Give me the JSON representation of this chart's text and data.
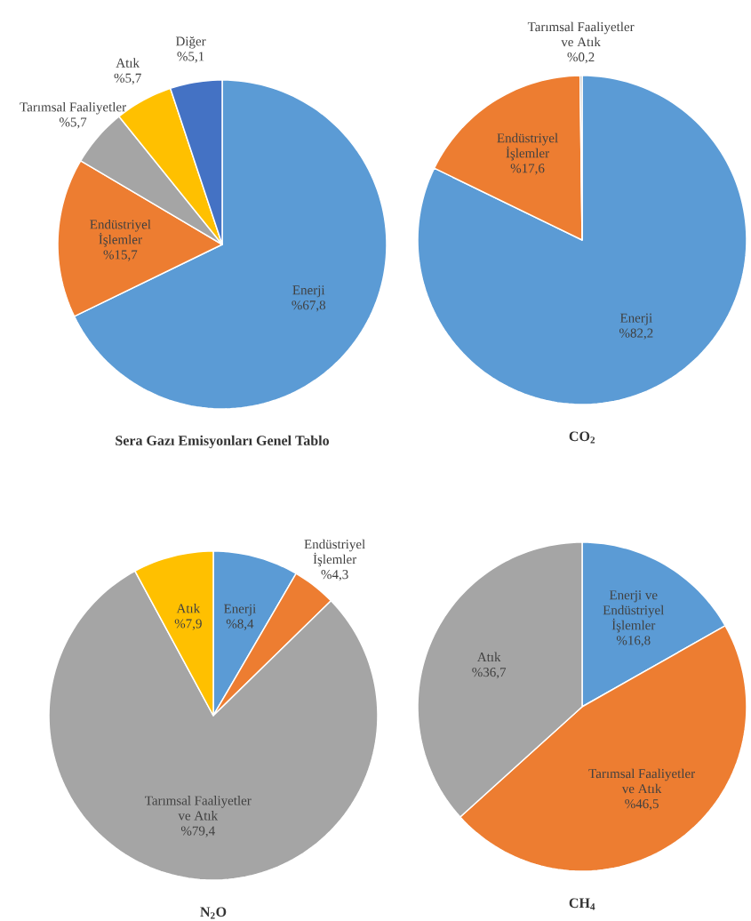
{
  "chart_data": [
    {
      "type": "pie",
      "title": "Sera Gazı Emisyonları Genel Tablo",
      "categories": [
        "Enerji",
        "Endüstriyel İşlemler",
        "Tarımsal Faaliyetler",
        "Atık",
        "Diğer"
      ],
      "values": [
        67.8,
        15.7,
        5.7,
        5.7,
        5.1
      ],
      "colors": [
        "#5b9bd5",
        "#ed7d31",
        "#a5a5a5",
        "#ffc000",
        "#4472c4"
      ],
      "value_labels": [
        "%67,8",
        "%15,7",
        "%5,7",
        "%5,7",
        "%5,1"
      ]
    },
    {
      "type": "pie",
      "title": "CO$_{2}$",
      "categories": [
        "Enerji",
        "Endüstriyel İşlemler",
        "Tarımsal Faaliyetler ve Atık"
      ],
      "values": [
        82.2,
        17.6,
        0.2
      ],
      "colors": [
        "#5b9bd5",
        "#ed7d31",
        "#a5a5a5"
      ],
      "value_labels": [
        "%82,2",
        "%17,6",
        "%0,2"
      ]
    },
    {
      "type": "pie",
      "title": "N$_{2}$O",
      "categories": [
        "Enerji",
        "Endüstriyel İşlemler",
        "Tarımsal Faaliyetler ve Atık",
        "Atık"
      ],
      "values": [
        8.4,
        4.3,
        79.4,
        7.9
      ],
      "colors": [
        "#5b9bd5",
        "#ed7d31",
        "#a5a5a5",
        "#ffc000"
      ],
      "value_labels": [
        "%8,4",
        "%4,3",
        "%79,4",
        "%7,9"
      ]
    },
    {
      "type": "pie",
      "title": "CH$_{4}$",
      "categories": [
        "Enerji  ve Endüstriyel İşlemler",
        "Tarımsal Faaliyetler ve Atık",
        "Atık"
      ],
      "values": [
        16.8,
        46.5,
        36.7
      ],
      "colors": [
        "#5b9bd5",
        "#ed7d31",
        "#a5a5a5"
      ],
      "value_labels": [
        "%16,8",
        "%46,5",
        "%36,7"
      ]
    }
  ]
}
